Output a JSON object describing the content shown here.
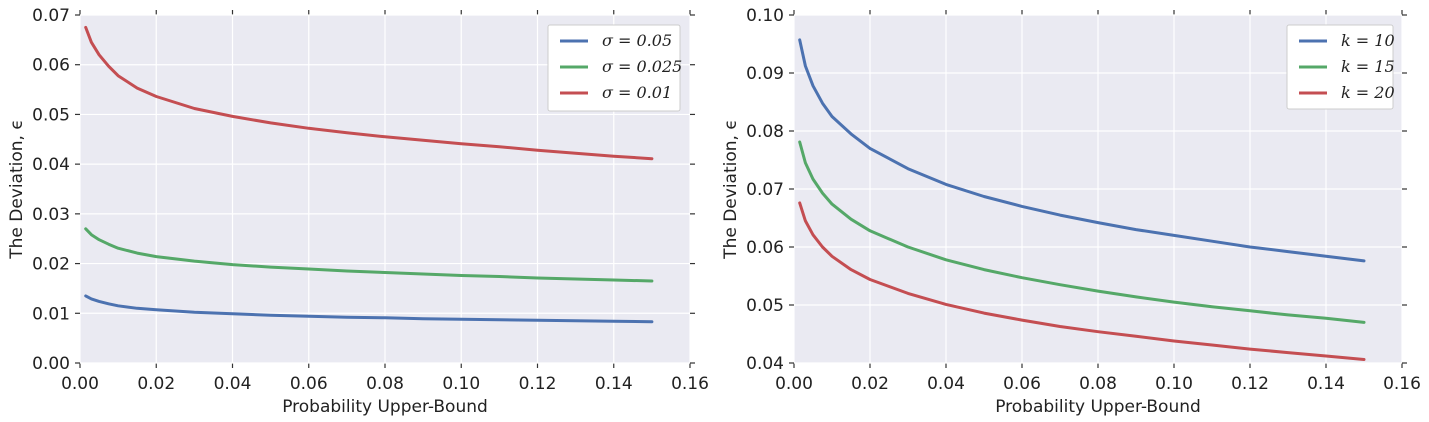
{
  "chart_data": [
    {
      "type": "line",
      "xlabel": "Probability Upper-Bound",
      "ylabel": "The Deviation, ϵ",
      "xlim": [
        0.0,
        0.16
      ],
      "ylim": [
        0.0,
        0.07
      ],
      "xticks": [
        "0.00",
        "0.02",
        "0.04",
        "0.06",
        "0.08",
        "0.10",
        "0.12",
        "0.14",
        "0.16"
      ],
      "yticks": [
        "0.00",
        "0.01",
        "0.02",
        "0.03",
        "0.04",
        "0.05",
        "0.06",
        "0.07"
      ],
      "grid": true,
      "legend_position": "top-right",
      "x": [
        0.0015,
        0.003,
        0.005,
        0.0075,
        0.01,
        0.015,
        0.02,
        0.03,
        0.04,
        0.05,
        0.06,
        0.07,
        0.08,
        0.09,
        0.1,
        0.11,
        0.12,
        0.13,
        0.14,
        0.15
      ],
      "series": [
        {
          "name": "σ = 0.05",
          "color": "#4c72b0",
          "values": [
            0.0135,
            0.0129,
            0.0124,
            0.0119,
            0.0115,
            0.011,
            0.0107,
            0.0102,
            0.0099,
            0.0096,
            0.0094,
            0.0092,
            0.0091,
            0.0089,
            0.0088,
            0.0087,
            0.0086,
            0.0085,
            0.0084,
            0.0083
          ]
        },
        {
          "name": "σ = 0.025",
          "color": "#55a868",
          "values": [
            0.027,
            0.0258,
            0.0248,
            0.0239,
            0.0231,
            0.0221,
            0.0214,
            0.0205,
            0.0198,
            0.0193,
            0.0189,
            0.0185,
            0.0182,
            0.0179,
            0.0176,
            0.0174,
            0.0171,
            0.0169,
            0.0167,
            0.0165
          ]
        },
        {
          "name": "σ = 0.01",
          "color": "#c44e52",
          "values": [
            0.0675,
            0.0645,
            0.062,
            0.0597,
            0.0578,
            0.0553,
            0.0536,
            0.0512,
            0.0496,
            0.0483,
            0.0472,
            0.0463,
            0.0455,
            0.0448,
            0.0441,
            0.0435,
            0.0428,
            0.0422,
            0.0416,
            0.0411
          ]
        }
      ]
    },
    {
      "type": "line",
      "xlabel": "Probability Upper-Bound",
      "ylabel": "The Deviation, ϵ",
      "xlim": [
        0.0,
        0.16
      ],
      "ylim": [
        0.04,
        0.1
      ],
      "xticks": [
        "0.00",
        "0.02",
        "0.04",
        "0.06",
        "0.08",
        "0.10",
        "0.12",
        "0.14",
        "0.16"
      ],
      "yticks": [
        "0.04",
        "0.05",
        "0.06",
        "0.07",
        "0.08",
        "0.09",
        "0.10"
      ],
      "grid": true,
      "legend_position": "top-right",
      "x": [
        0.0015,
        0.003,
        0.005,
        0.0075,
        0.01,
        0.015,
        0.02,
        0.03,
        0.04,
        0.05,
        0.06,
        0.07,
        0.08,
        0.09,
        0.1,
        0.11,
        0.12,
        0.13,
        0.14,
        0.15
      ],
      "series": [
        {
          "name": "k = 10",
          "color": "#4c72b0",
          "values": [
            0.0957,
            0.0912,
            0.0878,
            0.0848,
            0.0825,
            0.0795,
            0.077,
            0.0735,
            0.0708,
            0.0687,
            0.067,
            0.0655,
            0.0642,
            0.063,
            0.062,
            0.061,
            0.06,
            0.0592,
            0.0584,
            0.0576
          ]
        },
        {
          "name": "k = 15",
          "color": "#55a868",
          "values": [
            0.0781,
            0.0745,
            0.0717,
            0.0693,
            0.0674,
            0.0648,
            0.0628,
            0.06,
            0.0578,
            0.0561,
            0.0547,
            0.0535,
            0.0524,
            0.0514,
            0.0505,
            0.0497,
            0.049,
            0.0483,
            0.0477,
            0.047
          ]
        },
        {
          "name": "k = 20",
          "color": "#c44e52",
          "values": [
            0.0676,
            0.0645,
            0.0621,
            0.06,
            0.0584,
            0.0561,
            0.0544,
            0.052,
            0.0501,
            0.0486,
            0.0474,
            0.0463,
            0.0454,
            0.0446,
            0.0438,
            0.0431,
            0.0424,
            0.0418,
            0.0412,
            0.0406
          ]
        }
      ]
    }
  ]
}
